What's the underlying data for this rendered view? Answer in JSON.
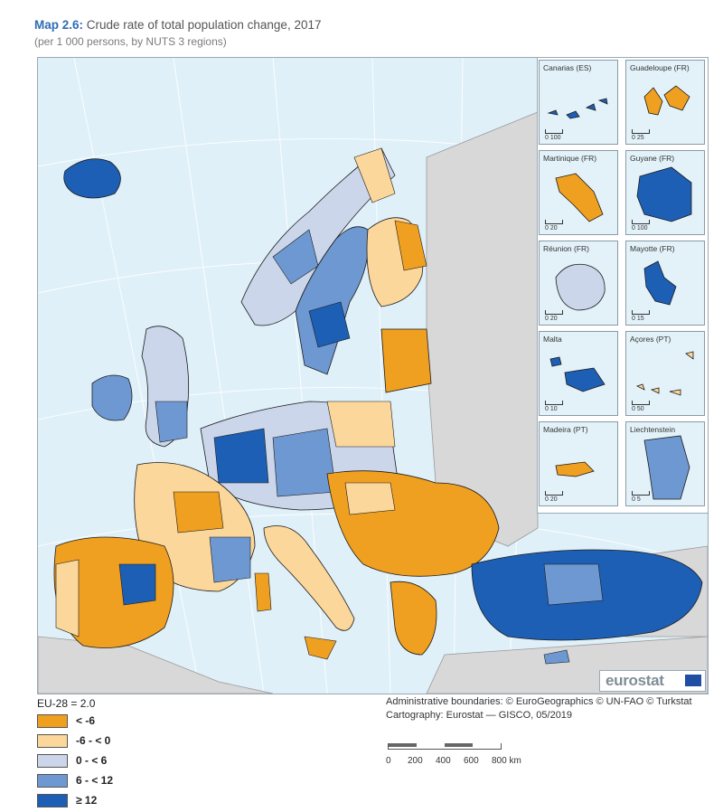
{
  "header": {
    "map_label": "Map 2.6:",
    "title": "Crude rate of total population change, 2017",
    "subtitle": "(per 1 000 persons, by NUTS 3 regions)"
  },
  "colors": {
    "sea": "#dff0f8",
    "non_eu_land": "#d8d8d8",
    "class_lt_neg6": "#f0a020",
    "class_neg6_0": "#fcd79b",
    "class_0_6": "#cbd6ea",
    "class_6_12": "#6e98d1",
    "class_ge12": "#1d5fb4",
    "graticule": "#ffffff",
    "border": "#1b1b1b"
  },
  "legend": {
    "eu_reference": "EU-28 = 2.0",
    "classes": [
      {
        "label": "< -6",
        "color": "#f0a020"
      },
      {
        "label": "-6 - < 0",
        "color": "#fcd79b"
      },
      {
        "label": "0 - < 6",
        "color": "#cbd6ea"
      },
      {
        "label": "6 - < 12",
        "color": "#6e98d1"
      },
      {
        "label": "≥ 12",
        "color": "#1d5fb4"
      }
    ]
  },
  "insets": [
    {
      "name": "Canarias (ES)",
      "scale_min": "0",
      "scale_max": "100",
      "fill": "#1d5fb4"
    },
    {
      "name": "Guadeloupe (FR)",
      "scale_min": "0",
      "scale_max": "25",
      "fill": "#f0a020"
    },
    {
      "name": "Martinique (FR)",
      "scale_min": "0",
      "scale_max": "20",
      "fill": "#f0a020"
    },
    {
      "name": "Guyane (FR)",
      "scale_min": "0",
      "scale_max": "100",
      "fill": "#1d5fb4"
    },
    {
      "name": "Réunion (FR)",
      "scale_min": "0",
      "scale_max": "20",
      "fill": "#cbd6ea"
    },
    {
      "name": "Mayotte (FR)",
      "scale_min": "0",
      "scale_max": "15",
      "fill": "#1d5fb4"
    },
    {
      "name": "Malta",
      "scale_min": "0",
      "scale_max": "10",
      "fill": "#1d5fb4"
    },
    {
      "name": "Açores (PT)",
      "scale_min": "0",
      "scale_max": "50",
      "fill": "#fcd79b"
    },
    {
      "name": "Madeira (PT)",
      "scale_min": "0",
      "scale_max": "20",
      "fill": "#f0a020"
    },
    {
      "name": "Liechtenstein",
      "scale_min": "0",
      "scale_max": "5",
      "fill": "#6e98d1"
    }
  ],
  "credits": {
    "boundaries": "Administrative boundaries: © EuroGeographics © UN-FAO © Turkstat",
    "cartography": "Cartography: Eurostat — GISCO, 05/2019"
  },
  "scale": {
    "labels": [
      "0",
      "200",
      "400",
      "600",
      "800 km"
    ]
  },
  "logo": {
    "text": "eurostat"
  }
}
